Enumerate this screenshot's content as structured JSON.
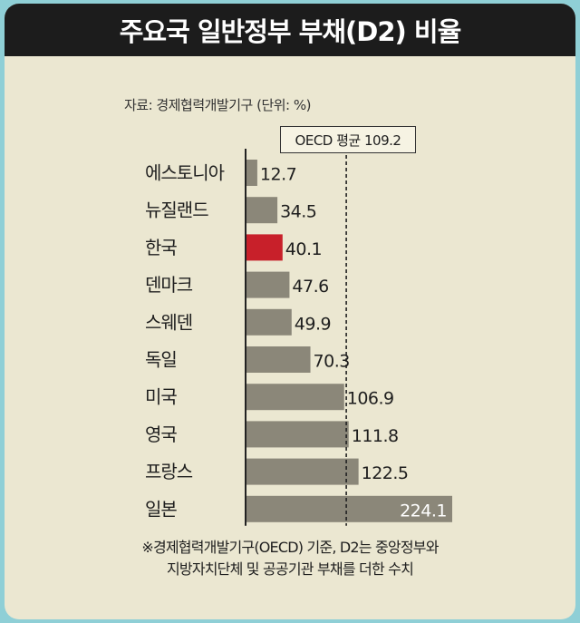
{
  "title": "주요국 일반정부 부채(D2) 비율",
  "source": "자료: 경제협력개발기구  (단위: %)",
  "note_lines": [
    "※경제협력개발기구(OECD) 기준, D2는 중앙정부와",
    "지방자치단체 및 공공기관 부채를 더한 수치"
  ],
  "colors": {
    "bar": "#8b8779",
    "highlight": "#c8202a",
    "title_bg": "#1c1c1c",
    "panel_bg": "#ebe7d1"
  },
  "chart_data": {
    "type": "bar",
    "orientation": "horizontal",
    "title": "주요국 일반정부 부채(D2) 비율",
    "unit": "%",
    "categories": [
      "에스토니아",
      "뉴질랜드",
      "한국",
      "덴마크",
      "스웨덴",
      "독일",
      "미국",
      "영국",
      "프랑스",
      "일본"
    ],
    "values": [
      12.7,
      34.5,
      40.1,
      47.6,
      49.9,
      70.3,
      106.9,
      111.8,
      122.5,
      224.1
    ],
    "value_labels": [
      "12.7",
      "34.5",
      "40.1",
      "47.6",
      "49.9",
      "70.3",
      "106.9",
      "111.8",
      "122.5",
      "224.1"
    ],
    "highlight": "한국",
    "reference_line": {
      "label": "OECD 평균 109.2",
      "value": 109.2,
      "style": "dashed"
    },
    "xlim": [
      0,
      224.1
    ],
    "grid": false,
    "legend": "none"
  }
}
